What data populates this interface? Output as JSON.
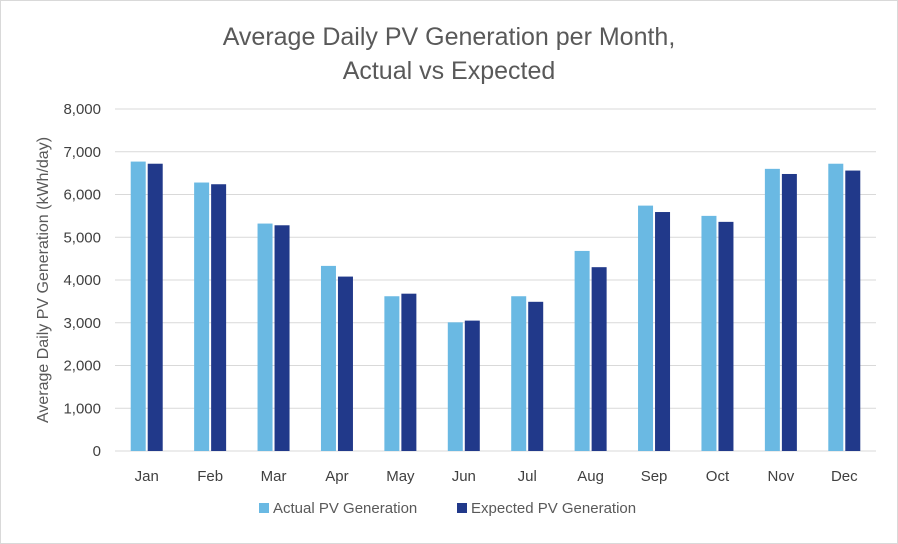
{
  "chart_data": {
    "type": "bar",
    "title_lines": [
      "Average Daily PV Generation per Month,",
      "Actual vs Expected"
    ],
    "ylabel": "Average Daily PV Generation (kWh/day)",
    "xlabel": "",
    "ylim": [
      0,
      8000
    ],
    "yticks": [
      0,
      1000,
      2000,
      3000,
      4000,
      5000,
      6000,
      7000,
      8000
    ],
    "ytick_labels": [
      "0",
      "1,000",
      "2,000",
      "3,000",
      "4,000",
      "5,000",
      "6,000",
      "7,000",
      "8,000"
    ],
    "grid": true,
    "legend_position": "bottom",
    "categories": [
      "Jan",
      "Feb",
      "Mar",
      "Apr",
      "May",
      "Jun",
      "Jul",
      "Aug",
      "Sep",
      "Oct",
      "Nov",
      "Dec"
    ],
    "series": [
      {
        "name": "Actual PV Generation",
        "color": "#6ab9e3",
        "values": [
          6770,
          6280,
          5320,
          4330,
          3620,
          3010,
          3620,
          4680,
          5740,
          5500,
          6600,
          6720
        ]
      },
      {
        "name": "Expected PV Generation",
        "color": "#21398a",
        "values": [
          6720,
          6240,
          5280,
          4080,
          3680,
          3050,
          3490,
          4300,
          5590,
          5360,
          6480,
          6560
        ]
      }
    ]
  }
}
